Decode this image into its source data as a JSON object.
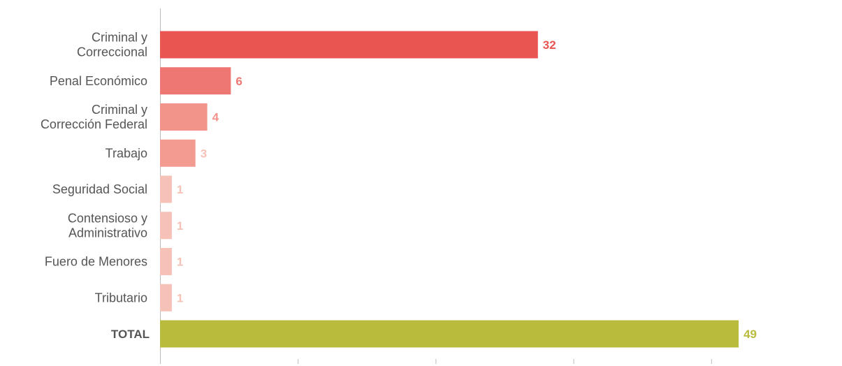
{
  "chart_data": {
    "type": "bar",
    "orientation": "horizontal",
    "categories": [
      [
        "Criminal y",
        "Correccional"
      ],
      [
        "Penal Económico"
      ],
      [
        "Criminal y",
        "Corrección Federal"
      ],
      [
        "Trabajo"
      ],
      [
        "Seguridad Social"
      ],
      [
        "Contensioso y",
        "Administrativo"
      ],
      [
        "Fuero de Menores"
      ],
      [
        "Tributario"
      ],
      [
        "TOTAL"
      ]
    ],
    "values": [
      32,
      6,
      4,
      3,
      1,
      1,
      1,
      1,
      49
    ],
    "value_labels": [
      "32",
      "6",
      "4",
      "3",
      "1",
      "1",
      "1",
      "1",
      "49"
    ],
    "bar_colors": [
      "#e95551",
      "#ef7773",
      "#f2948a",
      "#f39b91",
      "#f6c1b7",
      "#f6c1b7",
      "#f6c1b7",
      "#f6c1b7",
      "#b8bb3c"
    ],
    "label_colors": [
      "#e95551",
      "#ef7773",
      "#f2948a",
      "#f6c1b7",
      "#f6c1b7",
      "#f6c1b7",
      "#f6c1b7",
      "#f6c1b7",
      "#b8bb3c"
    ],
    "total_index": 8,
    "xlim": [
      0,
      50
    ],
    "grid": false,
    "title": "",
    "xlabel": "",
    "ylabel": ""
  }
}
